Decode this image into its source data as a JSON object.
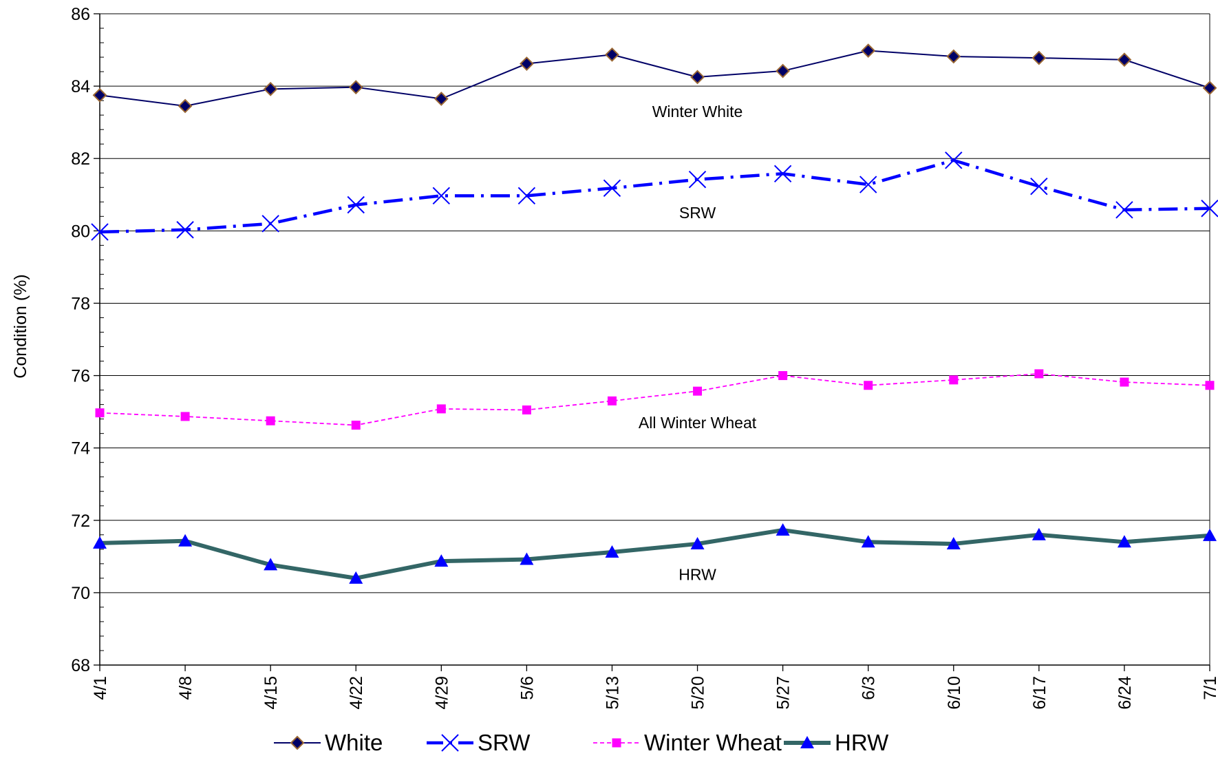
{
  "chart_data": {
    "type": "line",
    "ylabel": "Condition (%)",
    "xlabel": "",
    "ylim": [
      68,
      86
    ],
    "yticks": [
      "68",
      "70",
      "72",
      "74",
      "76",
      "78",
      "80",
      "82",
      "84",
      "86"
    ],
    "grid": "horizontal",
    "legend_position": "bottom",
    "categories": [
      "4/1",
      "4/8",
      "4/15",
      "4/22",
      "4/29",
      "5/6",
      "5/13",
      "5/20",
      "5/27",
      "6/3",
      "6/10",
      "6/17",
      "6/24",
      "7/1"
    ],
    "series": [
      {
        "name": "White",
        "color": "#000066",
        "marker": "diamond",
        "marker_fill": "#000066",
        "marker_stroke": "#996633",
        "line_style": "solid",
        "values": [
          83.75,
          83.45,
          83.92,
          83.97,
          83.65,
          84.62,
          84.87,
          84.25,
          84.42,
          84.98,
          84.82,
          84.78,
          84.73,
          83.95
        ]
      },
      {
        "name": "SRW",
        "color": "#0000ff",
        "marker": "x",
        "line_style": "dash-dot",
        "values": [
          79.97,
          80.03,
          80.2,
          80.72,
          80.97,
          80.97,
          81.18,
          81.42,
          81.58,
          81.28,
          81.95,
          81.23,
          80.58,
          80.62
        ]
      },
      {
        "name": "Winter Wheat",
        "color": "#ff00ff",
        "marker": "square",
        "line_style": "dashed",
        "values": [
          74.97,
          74.87,
          74.75,
          74.63,
          75.08,
          75.05,
          75.3,
          75.57,
          76.0,
          75.73,
          75.88,
          76.05,
          75.82,
          75.73
        ]
      },
      {
        "name": "HRW",
        "color": "#336666",
        "marker": "triangle",
        "marker_fill": "#0000ff",
        "line_style": "solid-thick",
        "values": [
          71.37,
          71.43,
          70.77,
          70.4,
          70.87,
          70.92,
          71.12,
          71.35,
          71.73,
          71.4,
          71.35,
          71.6,
          71.4,
          71.58
        ]
      }
    ],
    "annotations": [
      {
        "text": "Winter White",
        "x": "5/20",
        "y": 83.3
      },
      {
        "text": "SRW",
        "x": "5/20",
        "y": 80.5
      },
      {
        "text": "All Winter Wheat",
        "x": "5/20",
        "y": 74.7
      },
      {
        "text": "HRW",
        "x": "5/20",
        "y": 70.5
      }
    ]
  }
}
